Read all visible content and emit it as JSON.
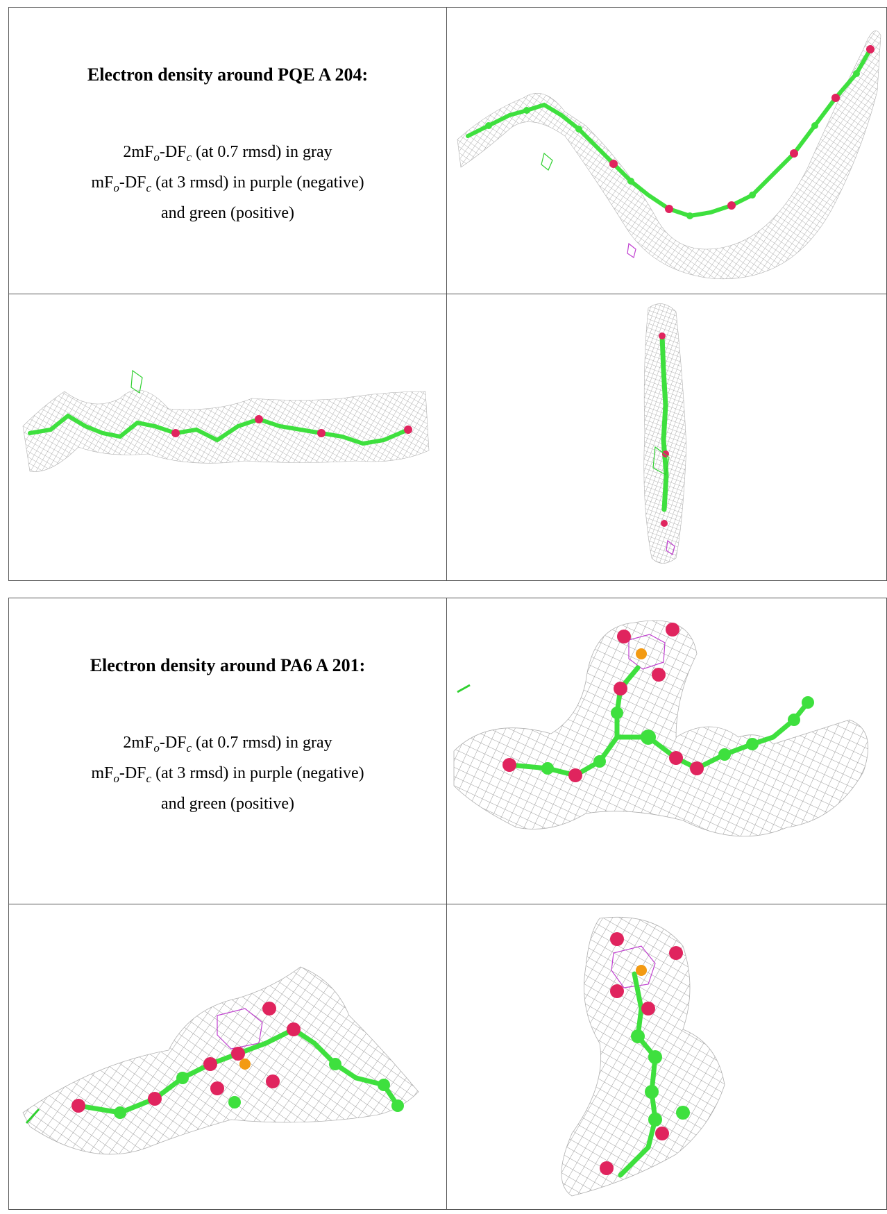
{
  "panels": [
    {
      "title": "Electron density around PQE A 204:",
      "line1": {
        "a": "2mF",
        "o": "o",
        "b": "-DF",
        "c": "c",
        "rest": " (at 0.7 rmsd) in gray"
      },
      "line2": {
        "a": "mF",
        "o": "o",
        "b": "-DF",
        "c": "c",
        "rest": " (at 3 rmsd) in purple (negative)"
      },
      "line3": "and green (positive)"
    },
    {
      "title": "Electron density around PA6 A 201:",
      "line1": {
        "a": "2mF",
        "o": "o",
        "b": "-DF",
        "c": "c",
        "rest": " (at 0.7 rmsd) in gray"
      },
      "line2": {
        "a": "mF",
        "o": "o",
        "b": "-DF",
        "c": "c",
        "rest": " (at 3 rmsd) in purple (negative)"
      },
      "line3": "and green (positive)"
    }
  ],
  "colors": {
    "mesh": "#9a9a9a",
    "carbon": "#3ee03e",
    "oxygen": "#e0245e",
    "phosphorus": "#f39a12",
    "negative": "#c040d0",
    "positive": "#30d030"
  }
}
